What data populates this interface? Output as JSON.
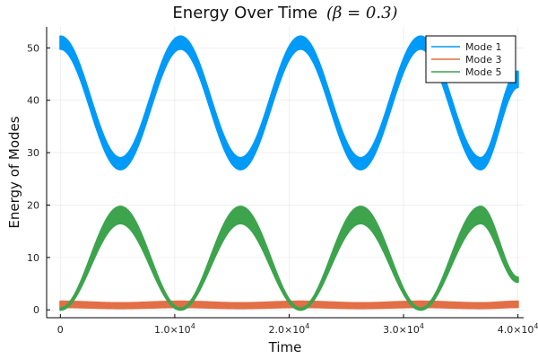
{
  "chart_data": {
    "type": "line",
    "title": "Energy Over Time",
    "title_math": "(β = 0.3)",
    "xlabel": "Time",
    "ylabel": "Energy of Modes",
    "xlim": [
      -1200,
      40500
    ],
    "ylim": [
      -1.5,
      54
    ],
    "grid": true,
    "legend_position": "top-right",
    "x_ticks": [
      {
        "value": 0,
        "mantissa": "0",
        "exp": ""
      },
      {
        "value": 10000,
        "mantissa": "1.0×10",
        "exp": "4"
      },
      {
        "value": 20000,
        "mantissa": "2.0×10",
        "exp": "4"
      },
      {
        "value": 30000,
        "mantissa": "3.0×10",
        "exp": "4"
      },
      {
        "value": 40000,
        "mantissa": "4.0×10",
        "exp": "4"
      }
    ],
    "y_ticks": [
      0,
      10,
      20,
      30,
      40,
      50
    ],
    "series": [
      {
        "name": "Mode 1",
        "color": "#009AF9",
        "period": 10500,
        "x": [
          0,
          5250,
          10500,
          15750,
          21000,
          26250,
          31500,
          36750,
          40000
        ],
        "upper": [
          52.2,
          29.0,
          52.2,
          29.0,
          52.2,
          29.0,
          52.2,
          29.0,
          45.5
        ],
        "lower": [
          49.8,
          26.8,
          49.8,
          26.8,
          49.8,
          26.8,
          49.8,
          26.8,
          42.5
        ]
      },
      {
        "name": "Mode 3",
        "color": "#E26F46",
        "x": [
          0,
          5250,
          10500,
          15750,
          21000,
          26250,
          31500,
          36750,
          40000
        ],
        "upper": [
          1.6,
          1.3,
          1.6,
          1.3,
          1.6,
          1.3,
          1.6,
          1.3,
          1.6
        ],
        "lower": [
          0.5,
          0.3,
          0.5,
          0.3,
          0.5,
          0.3,
          0.5,
          0.3,
          0.5
        ]
      },
      {
        "name": "Mode 5",
        "color": "#3DA44D",
        "x": [
          0,
          5250,
          10500,
          15750,
          21000,
          26250,
          31500,
          36750,
          40000
        ],
        "upper": [
          0.3,
          19.7,
          0.3,
          19.7,
          0.3,
          19.7,
          0.3,
          19.7,
          6.2
        ],
        "lower": [
          0.0,
          16.5,
          0.0,
          16.5,
          0.0,
          16.5,
          0.0,
          16.5,
          5.3
        ]
      }
    ]
  }
}
